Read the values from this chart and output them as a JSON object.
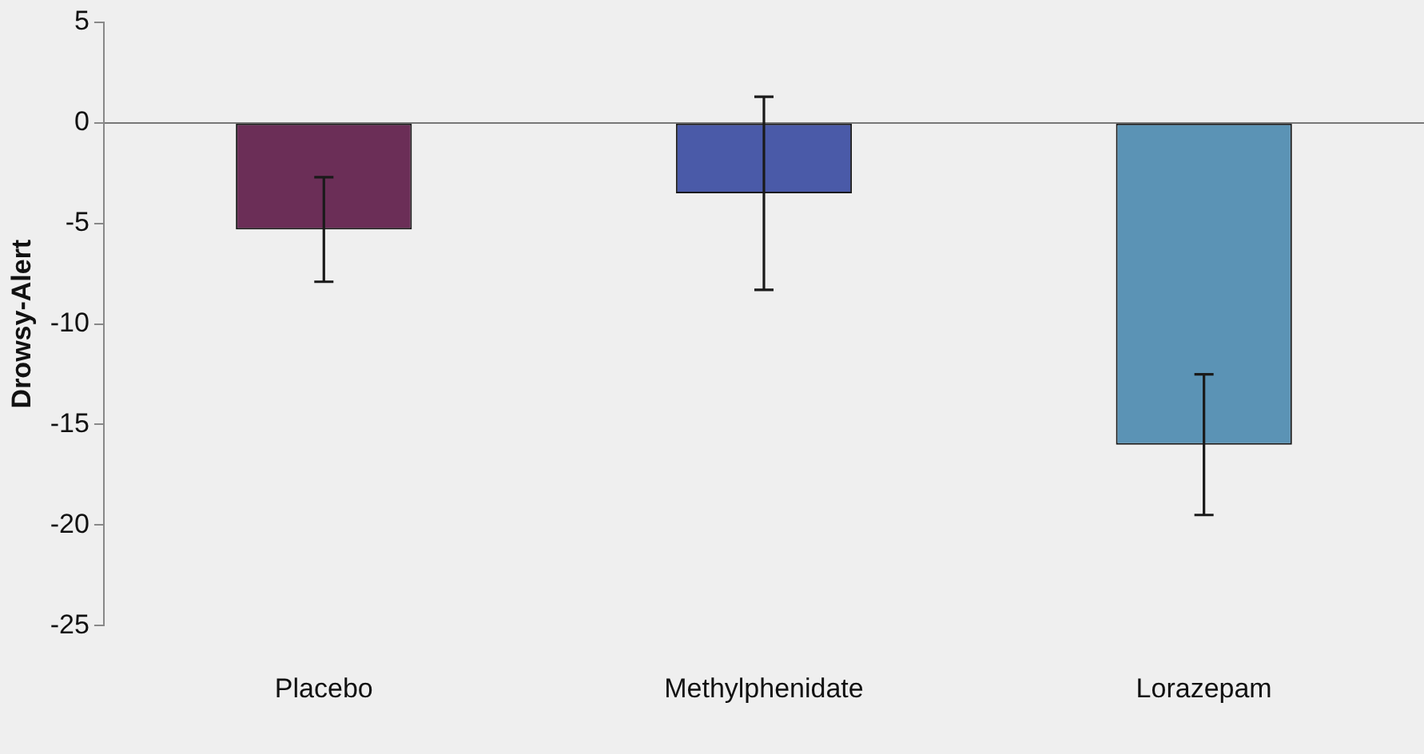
{
  "chart_data": {
    "type": "bar",
    "ylabel": "Drowsy-Alert",
    "categories": [
      "Placebo",
      "Methylphenidate",
      "Lorazepam"
    ],
    "values": [
      -5.3,
      -3.5,
      -16.0
    ],
    "errors": [
      2.6,
      4.8,
      3.5
    ],
    "colors": [
      "#6b2e57",
      "#4a5aa8",
      "#5b93b5"
    ],
    "ylim": [
      -25,
      5
    ],
    "yticks": [
      -25,
      -20,
      -15,
      -10,
      -5,
      0,
      5
    ]
  }
}
